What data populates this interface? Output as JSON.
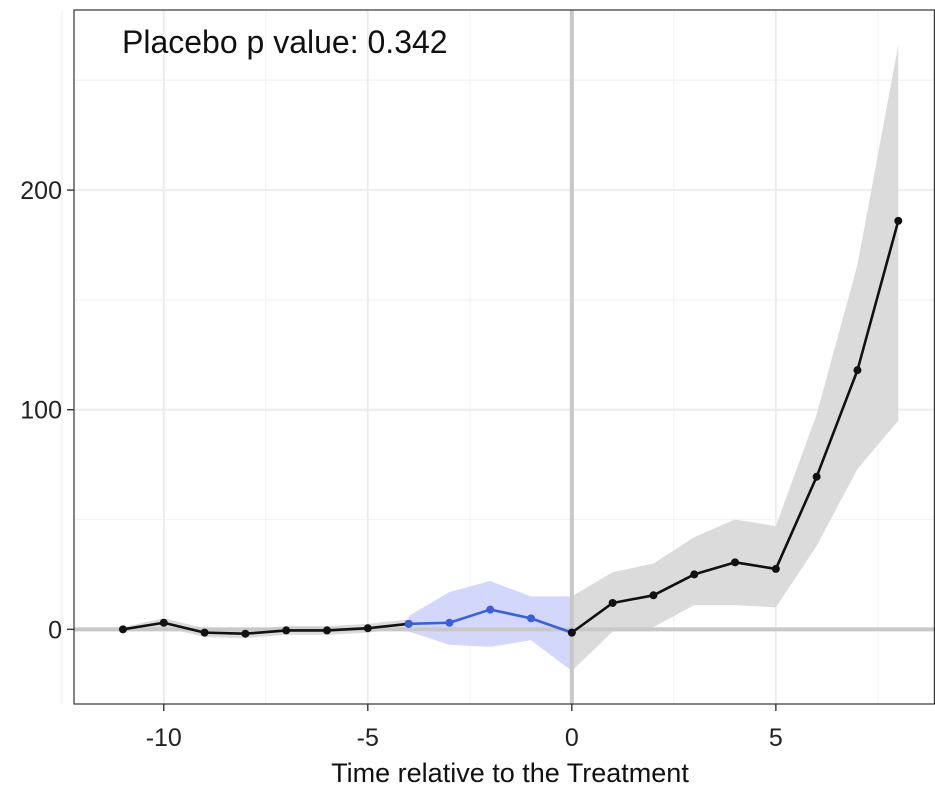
{
  "chart_data": {
    "type": "line",
    "title": "",
    "annotation": "Placebo p value: 0.342",
    "xlabel": "Time relative to the Treatment",
    "ylabel": "",
    "xlim": [
      -12.2,
      8.9
    ],
    "ylim": [
      -34,
      282
    ],
    "x_ticks": [
      -10,
      -5,
      0,
      5
    ],
    "x_tick_labels": [
      "-10",
      "-5",
      "0",
      "5"
    ],
    "y_ticks": [
      0,
      100,
      200
    ],
    "y_tick_labels": [
      "0",
      "100",
      "200"
    ],
    "grid": true,
    "x_minor_grid": [
      -12.5,
      -7.5,
      -2.5,
      2.5,
      7.5
    ],
    "y_minor_grid": [
      50,
      150,
      250
    ],
    "reference_lines": {
      "x": 0,
      "y": 0
    },
    "colors": {
      "main_line": "#111111",
      "placebo_line": "#3a5fe0",
      "main_band": "#d9d9d9",
      "placebo_band": "#ccd0fb",
      "reference": "#c8c8c8",
      "grid_major": "#ebebeb",
      "grid_minor": "#f3f3f3",
      "panel_border": "#333333"
    },
    "series": [
      {
        "x": [
          -11,
          -10,
          -9,
          -8,
          -7,
          -6,
          -5,
          -4
        ],
        "y": [
          0,
          3,
          -1.5,
          -2,
          -0.5,
          -0.5,
          0.5,
          2.5
        ],
        "ci_lower": [
          -1,
          1,
          -3.5,
          -4,
          -2.5,
          -2.5,
          -1.5,
          0.5
        ],
        "ci_upper": [
          1,
          5,
          0.5,
          0,
          1.5,
          1.5,
          2.5,
          4.5
        ]
      },
      {
        "x": [
          -4,
          -3,
          -2,
          -1,
          0
        ],
        "y": [
          2.5,
          3,
          9,
          5,
          -1.5
        ],
        "ci_lower": [
          -1,
          -7,
          -8,
          -5,
          -19
        ],
        "ci_upper": [
          6,
          17,
          22,
          15,
          15
        ]
      },
      {
        "x": [
          0,
          1,
          2,
          3,
          4,
          5,
          6,
          7,
          8
        ],
        "y": [
          -1.5,
          12,
          15.5,
          25,
          30.5,
          27.5,
          69.5,
          118,
          186
        ],
        "ci_lower": [
          -19,
          -1,
          1,
          11,
          11,
          10,
          38,
          73,
          95
        ],
        "ci_upper": [
          15,
          26,
          30,
          42,
          50,
          47,
          98,
          166,
          266
        ]
      }
    ]
  }
}
